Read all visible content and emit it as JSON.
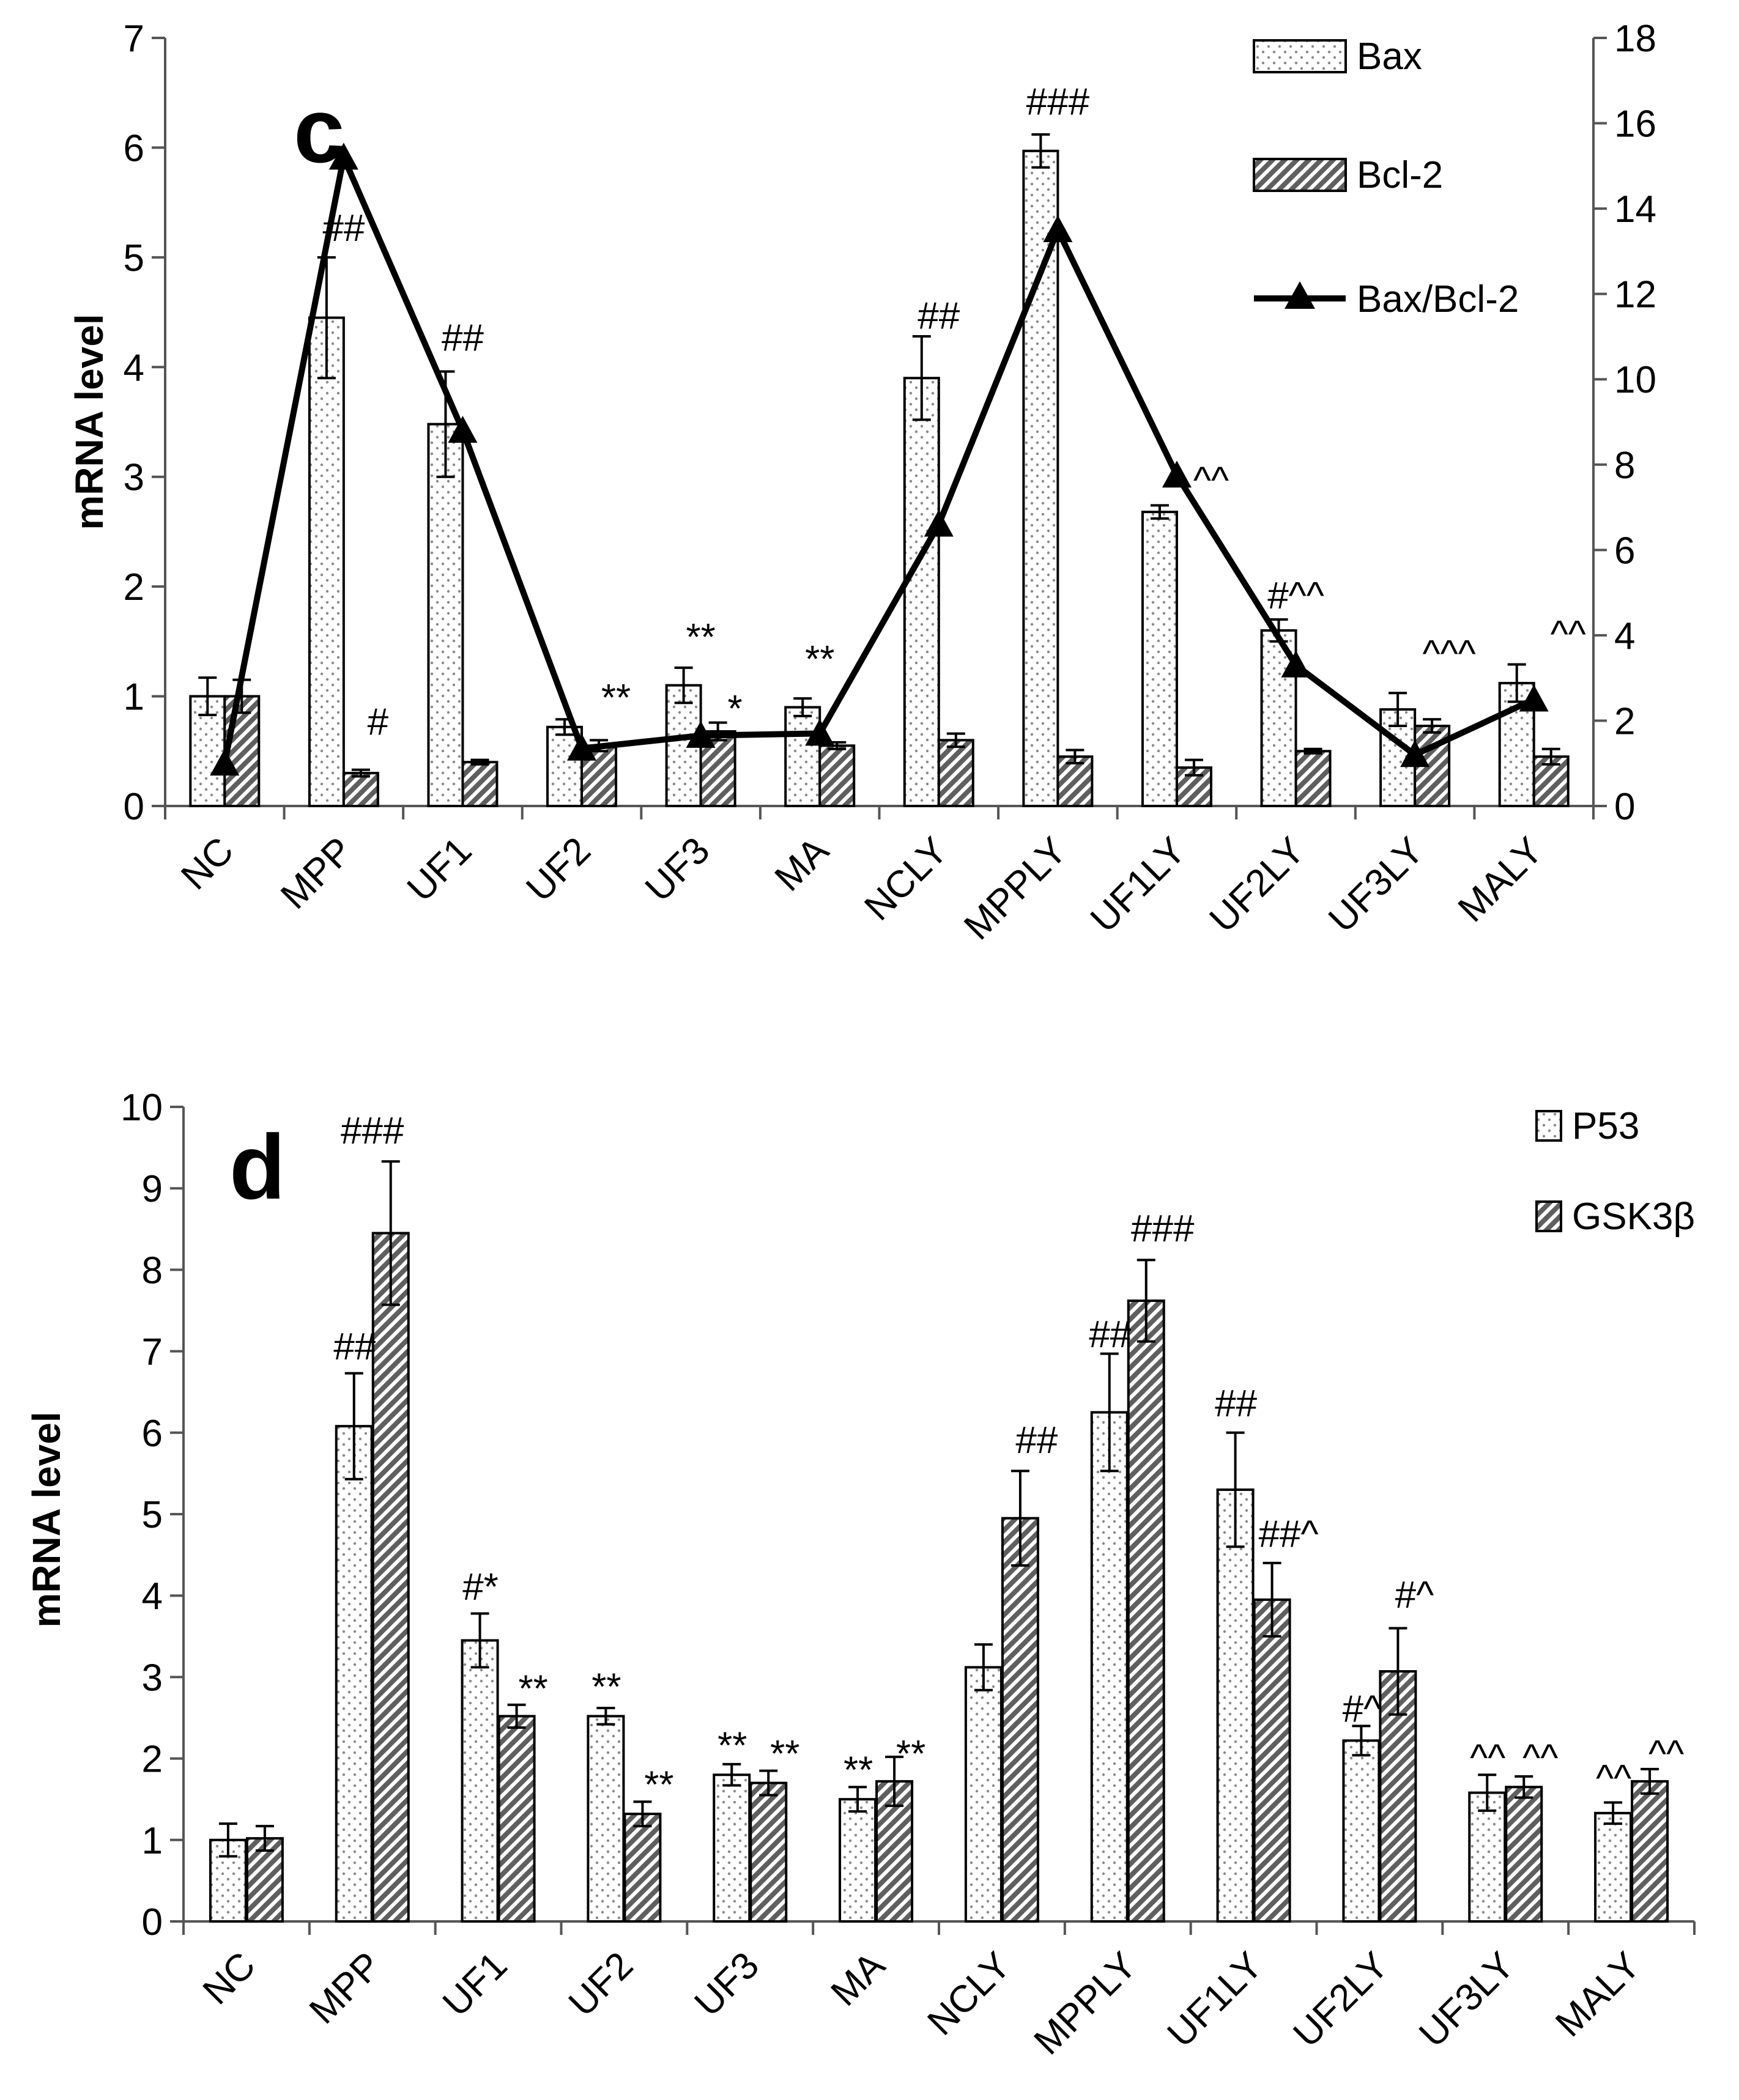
{
  "chart_data": [
    {
      "type": "bar",
      "panel_label": "c",
      "ylabel": "mRNA  level",
      "ylim": [
        0,
        7
      ],
      "yticks": [
        "0",
        "1",
        "2",
        "3",
        "4",
        "5",
        "6",
        "7"
      ],
      "y2lim": [
        0,
        18
      ],
      "y2ticks": [
        "0",
        "2",
        "4",
        "6",
        "8",
        "10",
        "12",
        "14",
        "16",
        "18"
      ],
      "categories": [
        "NC",
        "MPP",
        "UF1",
        "UF2",
        "UF3",
        "MA",
        "NCLY",
        "MPPLY",
        "UF1LY",
        "UF2LY",
        "UF3LY",
        "MALY"
      ],
      "series": [
        {
          "name": "Bax",
          "kind": "bar",
          "pattern": "dots",
          "values": [
            1.0,
            4.45,
            3.48,
            0.72,
            1.1,
            0.9,
            3.9,
            5.97,
            2.68,
            1.6,
            0.88,
            1.12
          ],
          "errors": [
            0.17,
            0.55,
            0.48,
            0.07,
            0.16,
            0.08,
            0.38,
            0.15,
            0.06,
            0.1,
            0.15,
            0.17
          ]
        },
        {
          "name": "Bcl-2",
          "kind": "bar",
          "pattern": "hatch",
          "values": [
            1.0,
            0.3,
            0.4,
            0.55,
            0.68,
            0.55,
            0.6,
            0.45,
            0.35,
            0.5,
            0.73,
            0.45
          ],
          "errors": [
            0.15,
            0.03,
            0.02,
            0.05,
            0.08,
            0.03,
            0.06,
            0.06,
            0.07,
            0.02,
            0.06,
            0.07
          ]
        },
        {
          "name": "Bax/Bcl-2",
          "kind": "line",
          "axis": "right",
          "values": [
            1.0,
            15.2,
            8.8,
            1.35,
            1.65,
            1.7,
            6.6,
            13.5,
            7.75,
            3.3,
            1.2,
            2.5
          ]
        }
      ],
      "annotations": [
        {
          "text": "##",
          "cat": "MPP",
          "y": 5.15
        },
        {
          "text": "#",
          "cat": "MPP",
          "y": 0.65,
          "side": "right"
        },
        {
          "text": "##",
          "cat": "UF1",
          "y": 4.15
        },
        {
          "text": "**",
          "cat": "UF2",
          "y": 0.87,
          "side": "right"
        },
        {
          "text": "**",
          "cat": "UF3",
          "y": 1.42
        },
        {
          "text": "*",
          "cat": "UF3",
          "y": 0.77,
          "side": "right"
        },
        {
          "text": "**",
          "cat": "MA",
          "y": 1.22
        },
        {
          "text": "##",
          "cat": "NCLY",
          "y": 4.35
        },
        {
          "text": "###",
          "cat": "MPPLY",
          "y": 6.3
        },
        {
          "text": "^^",
          "cat": "UF1LY",
          "y": 2.85,
          "side": "right"
        },
        {
          "text": "#^^",
          "cat": "UF2LY",
          "y": 1.8
        },
        {
          "text": "^^^",
          "cat": "UF3LY",
          "y": 1.27,
          "side": "right"
        },
        {
          "text": "^^",
          "cat": "MALY",
          "y": 1.45,
          "side": "right"
        }
      ]
    },
    {
      "type": "bar",
      "panel_label": "d",
      "ylabel": "mRNA  level",
      "ylim": [
        0,
        10
      ],
      "yticks": [
        "0",
        "1",
        "2",
        "3",
        "4",
        "5",
        "6",
        "7",
        "8",
        "9",
        "10"
      ],
      "categories": [
        "NC",
        "MPP",
        "UF1",
        "UF2",
        "UF3",
        "MA",
        "NCLY",
        "MPPLY",
        "UF1LY",
        "UF2LY",
        "UF3LY",
        "MALY"
      ],
      "series": [
        {
          "name": "P53",
          "kind": "bar",
          "pattern": "dots",
          "values": [
            1.0,
            6.08,
            3.45,
            2.52,
            1.8,
            1.5,
            3.12,
            6.25,
            5.3,
            2.22,
            1.58,
            1.33
          ],
          "errors": [
            0.2,
            0.65,
            0.33,
            0.1,
            0.13,
            0.15,
            0.28,
            0.72,
            0.7,
            0.18,
            0.22,
            0.13
          ]
        },
        {
          "name": "GSK3β",
          "kind": "bar",
          "pattern": "hatch",
          "values": [
            1.02,
            8.45,
            2.52,
            1.32,
            1.7,
            1.72,
            4.95,
            7.62,
            3.95,
            3.07,
            1.65,
            1.72
          ],
          "errors": [
            0.15,
            0.88,
            0.14,
            0.15,
            0.15,
            0.3,
            0.58,
            0.5,
            0.45,
            0.53,
            0.13,
            0.15
          ]
        }
      ],
      "annotations": [
        {
          "text": "##",
          "cat": "MPP",
          "y": 6.9,
          "side": "left"
        },
        {
          "text": "###",
          "cat": "MPP",
          "y": 9.55
        },
        {
          "text": "#*",
          "cat": "UF1",
          "y": 3.95,
          "side": "left"
        },
        {
          "text": "**",
          "cat": "UF1",
          "y": 2.7,
          "side": "right"
        },
        {
          "text": "**",
          "cat": "UF2",
          "y": 2.72,
          "side": "left"
        },
        {
          "text": "**",
          "cat": "UF2",
          "y": 1.52,
          "side": "right"
        },
        {
          "text": "**",
          "cat": "UF3",
          "y": 2.0,
          "side": "left"
        },
        {
          "text": "**",
          "cat": "UF3",
          "y": 1.9,
          "side": "right"
        },
        {
          "text": "**",
          "cat": "MA",
          "y": 1.7,
          "side": "left"
        },
        {
          "text": "**",
          "cat": "MA",
          "y": 1.9,
          "side": "right"
        },
        {
          "text": "##",
          "cat": "NCLY",
          "y": 5.75,
          "side": "right"
        },
        {
          "text": "##",
          "cat": "MPPLY",
          "y": 7.05,
          "side": "left"
        },
        {
          "text": "###",
          "cat": "MPPLY",
          "y": 8.35,
          "side": "right"
        },
        {
          "text": "##",
          "cat": "UF1LY",
          "y": 6.2,
          "side": "left"
        },
        {
          "text": "##^",
          "cat": "UF1LY",
          "y": 4.6,
          "side": "right"
        },
        {
          "text": "#^",
          "cat": "UF2LY",
          "y": 2.45,
          "side": "left"
        },
        {
          "text": "#^",
          "cat": "UF2LY",
          "y": 3.85,
          "side": "right"
        },
        {
          "text": "^^",
          "cat": "UF3LY",
          "y": 1.85,
          "side": "left"
        },
        {
          "text": "^^",
          "cat": "UF3LY",
          "y": 1.85,
          "side": "right"
        },
        {
          "text": "^^",
          "cat": "MALY",
          "y": 1.6,
          "side": "left"
        },
        {
          "text": "^^",
          "cat": "MALY",
          "y": 1.9,
          "side": "right"
        }
      ]
    }
  ]
}
